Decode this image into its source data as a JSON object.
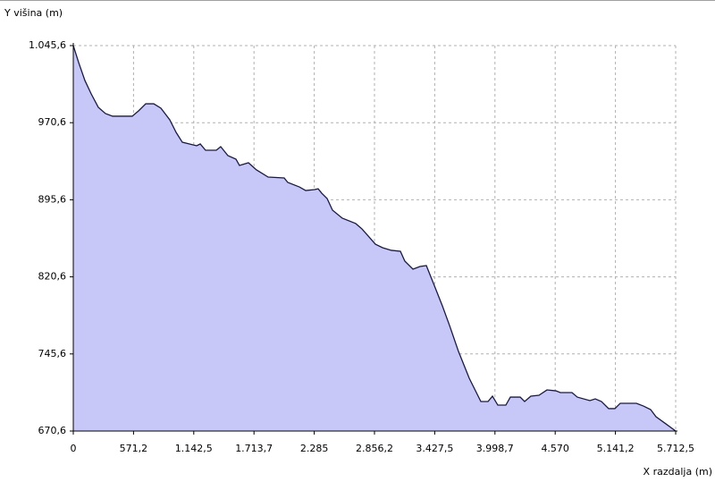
{
  "chart_data": {
    "type": "area",
    "ylabel": "Y višina (m)",
    "xlabel": "X razdalja (m)",
    "color": "#c8c8f8",
    "line_color": "#1a1a40",
    "grid": true,
    "xlim": [
      0,
      5712.5
    ],
    "ylim": [
      670.6,
      1045.6
    ],
    "xticks": [
      0,
      {
        "value": 571.2,
        "label": "571,2"
      },
      {
        "value": 1142.5,
        "label": "1.142,5"
      },
      {
        "value": 1713.7,
        "label": "1.713,7"
      },
      {
        "value": 2285,
        "label": "2.285"
      },
      {
        "value": 2856.2,
        "label": "2.856,2"
      },
      {
        "value": 3427.5,
        "label": "3.427,5"
      },
      {
        "value": 3998.7,
        "label": "3.998,7"
      },
      {
        "value": 4570,
        "label": "4.570"
      },
      {
        "value": 5141.2,
        "label": "5.141,2"
      },
      {
        "value": 5712.5,
        "label": "5.712,5"
      }
    ],
    "yticks": [
      {
        "value": 670.6,
        "label": "670,6"
      },
      {
        "value": 745.6,
        "label": "745,6"
      },
      {
        "value": 820.6,
        "label": "820,6"
      },
      {
        "value": 895.6,
        "label": "895,6"
      },
      {
        "value": 970.6,
        "label": "970,6"
      },
      {
        "value": 1045.6,
        "label": "1.045,6"
      }
    ],
    "x": [
      0,
      51,
      110,
      170,
      237,
      305,
      373,
      449,
      559,
      619,
      687,
      763,
      831,
      915,
      975,
      1034,
      1102,
      1170,
      1204,
      1254,
      1356,
      1398,
      1466,
      1543,
      1576,
      1661,
      1737,
      1848,
      2000,
      2034,
      2144,
      2204,
      2288,
      2322,
      2356,
      2407,
      2458,
      2551,
      2678,
      2738,
      2797,
      2865,
      2933,
      3017,
      3102,
      3144,
      3221,
      3288,
      3348,
      3416,
      3500,
      3568,
      3653,
      3755,
      3865,
      3933,
      3975,
      4026,
      4102,
      4145,
      4238,
      4280,
      4339,
      4416,
      4492,
      4577,
      4619,
      4729,
      4780,
      4899,
      4950,
      5009,
      5077,
      5136,
      5187,
      5340,
      5407,
      5475,
      5526,
      5619,
      5712.5
    ],
    "values": [
      1045.6,
      1029.1,
      1011.7,
      998.6,
      985.6,
      979.5,
      976.9,
      976.9,
      976.9,
      982.1,
      989.0,
      989.0,
      984.7,
      973.4,
      961.2,
      951.6,
      949.9,
      948.2,
      949.9,
      943.8,
      943.8,
      947.3,
      938.6,
      935.1,
      929.0,
      931.6,
      924.7,
      917.7,
      916.8,
      912.5,
      908.1,
      904.6,
      905.5,
      906.3,
      902.0,
      896.8,
      885.5,
      877.7,
      872.5,
      867.2,
      860.3,
      852.4,
      849.0,
      846.4,
      845.5,
      835.9,
      828.1,
      830.7,
      831.6,
      814.2,
      792.4,
      773.3,
      748.0,
      721.9,
      699.3,
      699.3,
      704.5,
      695.8,
      695.8,
      703.6,
      703.6,
      699.3,
      704.5,
      705.4,
      710.6,
      709.7,
      708.0,
      708.0,
      703.6,
      700.2,
      701.9,
      699.3,
      692.4,
      692.4,
      697.6,
      697.6,
      694.9,
      691.5,
      684.5,
      677.6,
      670.6
    ]
  }
}
